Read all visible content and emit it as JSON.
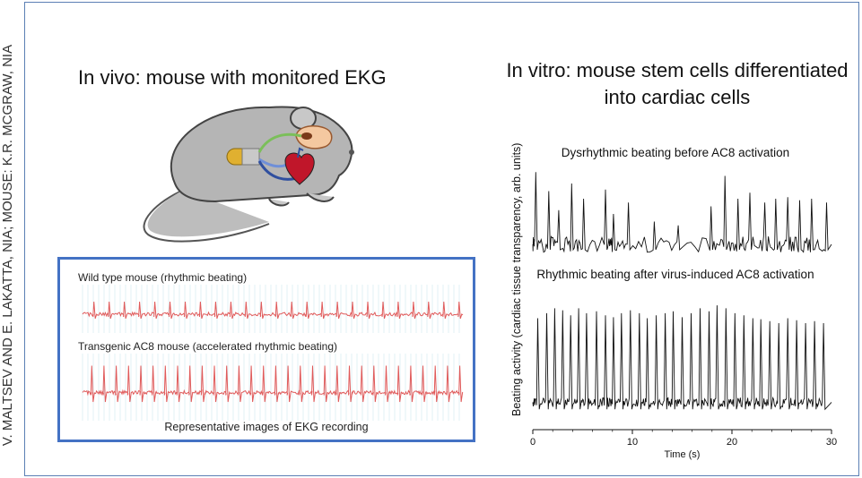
{
  "credit": "V. MALTSEV AND E. LAKATTA, NIA; MOUSE: K.R. MCGRAW, NIA",
  "left": {
    "title": "In vivo: mouse with monitored EKG",
    "ekg": {
      "trace1_label": "Wild type mouse (rhythmic beating)",
      "trace2_label": "Transgenic AC8 mouse (accelerated rhythmic beating)",
      "caption": "Representative images of EKG recording",
      "trace_color": "#e05a5a",
      "grid_color": "#cfe6ee"
    }
  },
  "right": {
    "title": "In vitro: mouse stem cells differentiated into cardiac cells",
    "panel1_title": "Dysrhythmic beating before AC8 activation",
    "panel2_title": "Rhythmic beating after virus-induced AC8 activation",
    "ylabel": "Beating activity (cardiac tissue transparency, arb. units)",
    "xlabel": "Time (s)",
    "xticks": [
      "0",
      "10",
      "20",
      "30"
    ]
  },
  "chart_data": {
    "type": "line",
    "xlabel": "Time (s)",
    "ylabel": "Beating activity (cardiac tissue transparency, arb. units)",
    "xlim": [
      0,
      30
    ],
    "series": [
      {
        "name": "Dysrhythmic beating before AC8 activation",
        "peak_times": [
          0.3,
          1.6,
          2.6,
          3.9,
          5.1,
          7.3,
          8.1,
          9.6,
          12.2,
          14.6,
          17.9,
          19.3,
          20.6,
          21.8,
          23.3,
          24.4,
          25.6,
          26.8,
          28.0,
          29.5
        ],
        "peak_heights": [
          0.95,
          0.7,
          0.45,
          0.8,
          0.6,
          0.72,
          0.4,
          0.55,
          0.3,
          0.25,
          0.5,
          0.9,
          0.6,
          0.68,
          0.55,
          0.6,
          0.62,
          0.58,
          0.6,
          0.55
        ]
      },
      {
        "name": "Rhythmic beating after virus-induced AC8 activation",
        "peak_times": [
          0.5,
          1.4,
          2.2,
          3.0,
          3.8,
          4.6,
          5.4,
          6.4,
          7.3,
          8.1,
          8.9,
          9.8,
          10.7,
          11.5,
          12.4,
          13.3,
          14.1,
          15.0,
          15.9,
          16.8,
          17.7,
          18.5,
          19.4,
          20.3,
          21.2,
          22.1,
          22.9,
          23.8,
          24.7,
          25.6,
          26.5,
          27.4,
          28.3,
          29.2
        ],
        "peak_heights": [
          0.85,
          0.9,
          0.95,
          0.93,
          0.88,
          0.95,
          0.9,
          0.92,
          0.88,
          0.86,
          0.9,
          0.93,
          0.9,
          0.85,
          0.88,
          0.9,
          0.92,
          0.86,
          0.9,
          0.95,
          0.92,
          0.98,
          0.95,
          0.9,
          0.88,
          0.85,
          0.84,
          0.82,
          0.8,
          0.85,
          0.83,
          0.8,
          0.82,
          0.8
        ]
      }
    ]
  }
}
